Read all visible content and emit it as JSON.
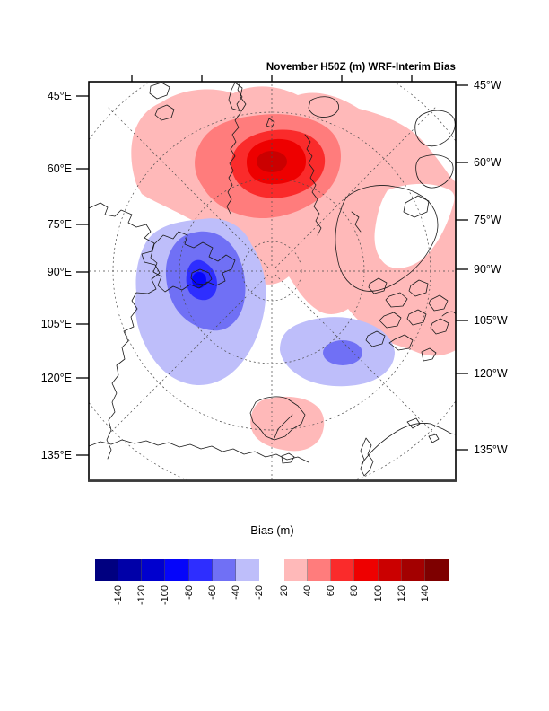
{
  "figure": {
    "title": "November H50Z (m) WRF-Interim Bias",
    "left_axis_labels": [
      "45°E",
      "60°E",
      "75°E",
      "90°E",
      "105°E",
      "120°E",
      "135°E"
    ],
    "right_axis_labels": [
      "45°W",
      "60°W",
      "75°W",
      "90°W",
      "105°W",
      "120°W",
      "135°W"
    ]
  },
  "chart_data": {
    "type": "heatmap",
    "subtype": "filled-contour-polar-stereographic-map",
    "title": "November H50Z (m) WRF-Interim Bias",
    "variable": "500 hPa geopotential height bias (WRF minus ERA-Interim)",
    "units": "m",
    "colorbar": {
      "title": "Bias (m)",
      "orientation": "horizontal",
      "levels": [
        -160,
        -140,
        -120,
        -100,
        -80,
        -60,
        -40,
        -20,
        20,
        40,
        60,
        80,
        100,
        120,
        140,
        160
      ],
      "gap_around_zero": [
        -20,
        20
      ],
      "tick_labels_negative": [
        "-140",
        "-120",
        "-100",
        "-80",
        "-60",
        "-40",
        "-20"
      ],
      "tick_labels_positive": [
        "20",
        "40",
        "60",
        "80",
        "100",
        "120",
        "140"
      ],
      "blue_colors": [
        "#000080",
        "#0000A8",
        "#0000CE",
        "#0505FA",
        "#2E2EFF",
        "#7070F5",
        "#BEBEFA"
      ],
      "red_colors": [
        "#FFB9B9",
        "#FF7C7C",
        "#FA2B2B",
        "#EE0000",
        "#CB0000",
        "#A30000",
        "#7E0000"
      ]
    },
    "graticule": {
      "meridian_labels_east_side": [
        "45°E",
        "60°E",
        "75°E",
        "90°E",
        "105°E",
        "120°E",
        "135°E"
      ],
      "meridian_labels_west_side": [
        "45°W",
        "60°W",
        "75°W",
        "90°W",
        "105°W",
        "120°W",
        "135°W"
      ],
      "style": "dashed"
    },
    "features": [
      {
        "sign": "positive",
        "location": "central Arctic / pole-ward sector (upper middle of map)",
        "peak_bin_m": "100 to 120",
        "contour_bins_m": [
          "20-40",
          "40-60",
          "60-80",
          "80-100",
          "100-120"
        ]
      },
      {
        "sign": "positive",
        "location": "broad band extending toward Canadian Arctic Archipelago (right side)",
        "peak_bin_m": "20 to 40",
        "contour_bins_m": [
          "20-40"
        ]
      },
      {
        "sign": "negative",
        "location": "Siberian sector (left-middle of map)",
        "peak_bin_m": "-100 to -80",
        "contour_bins_m": [
          "-40--20",
          "-60--40",
          "-80--60",
          "-100--80"
        ]
      },
      {
        "sign": "negative",
        "location": "secondary center lower-right of pole",
        "peak_bin_m": "-60 to -40",
        "contour_bins_m": [
          "-40--20",
          "-60--40"
        ]
      },
      {
        "sign": "positive",
        "location": "Scandinavia (bottom center)",
        "peak_bin_m": "20 to 40",
        "contour_bins_m": [
          "20-40"
        ]
      }
    ]
  }
}
